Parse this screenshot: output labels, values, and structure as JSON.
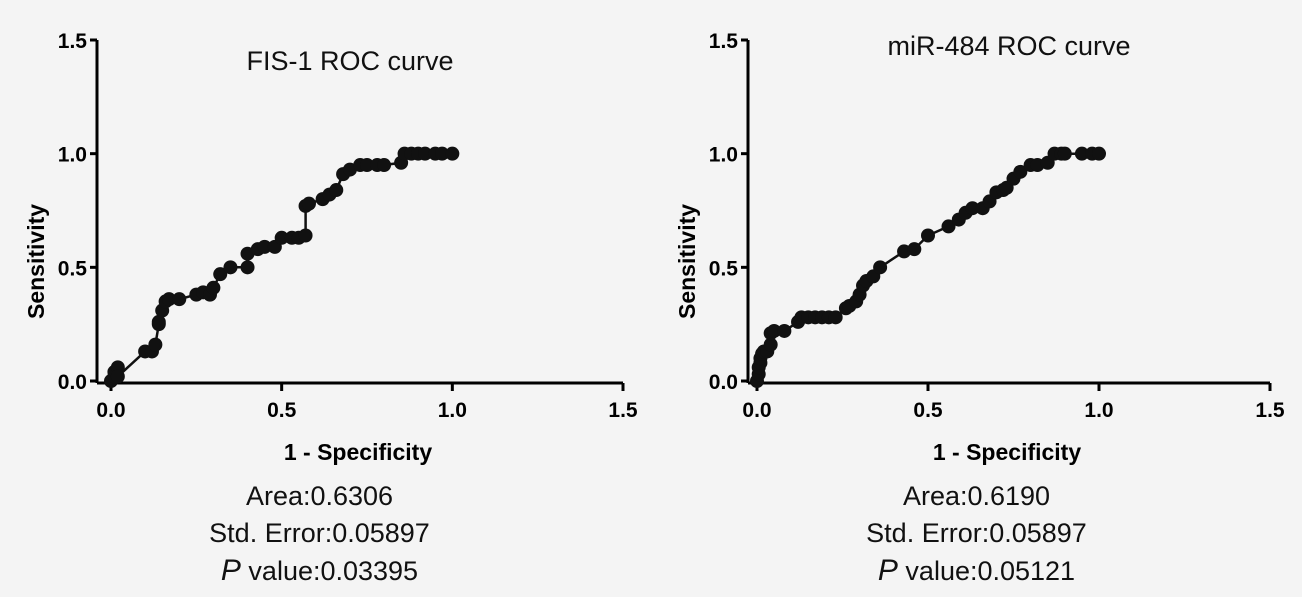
{
  "chart_data": [
    {
      "type": "line",
      "title": "FIS-1 ROC curve",
      "xlabel": "1 - Specificity",
      "ylabel": "Sensitivity",
      "xlim": [
        0,
        1.5
      ],
      "ylim": [
        0,
        1.5
      ],
      "xticks": [
        "0.0",
        "0.5",
        "1.0",
        "1.5"
      ],
      "yticks": [
        "0.0",
        "0.5",
        "1.0",
        "1.5"
      ],
      "grid": false,
      "series": [
        {
          "x": [
            0,
            0.01,
            0.01,
            0.02,
            0.02,
            0.1,
            0.12,
            0.13,
            0.14,
            0.14,
            0.15,
            0.16,
            0.17,
            0.2,
            0.25,
            0.27,
            0.29,
            0.3,
            0.32,
            0.35,
            0.4,
            0.4,
            0.43,
            0.45,
            0.48,
            0.5,
            0.53,
            0.55,
            0.57,
            0.57,
            0.58,
            0.62,
            0.64,
            0.66,
            0.68,
            0.7,
            0.73,
            0.75,
            0.78,
            0.8,
            0.85,
            0.86,
            0.88,
            0.9,
            0.92,
            0.95,
            0.97,
            1.0
          ],
          "y": [
            0,
            0.02,
            0.04,
            0.06,
            0.02,
            0.13,
            0.13,
            0.16,
            0.25,
            0.26,
            0.31,
            0.35,
            0.36,
            0.36,
            0.38,
            0.39,
            0.38,
            0.41,
            0.47,
            0.5,
            0.5,
            0.56,
            0.58,
            0.59,
            0.59,
            0.63,
            0.63,
            0.63,
            0.64,
            0.77,
            0.78,
            0.8,
            0.82,
            0.84,
            0.91,
            0.93,
            0.95,
            0.95,
            0.95,
            0.95,
            0.96,
            1.0,
            1.0,
            1.0,
            1.0,
            1.0,
            1.0,
            1.0
          ]
        }
      ],
      "stats": {
        "area": "Area:0.6306",
        "std_error": "Std. Error:0.05897",
        "p_label": "P",
        "p_value": " value:0.03395"
      }
    },
    {
      "type": "line",
      "title": "miR-484 ROC curve",
      "xlabel": "1 - Specificity",
      "ylabel": "Sensitivity",
      "xlim": [
        0,
        1.5
      ],
      "ylim": [
        0,
        1.5
      ],
      "xticks": [
        "0.0",
        "0.5",
        "1.0",
        "1.5"
      ],
      "yticks": [
        "0.0",
        "0.5",
        "1.0",
        "1.5"
      ],
      "grid": false,
      "series": [
        {
          "x": [
            0,
            0.005,
            0.005,
            0.01,
            0.01,
            0.015,
            0.02,
            0.03,
            0.04,
            0.04,
            0.05,
            0.08,
            0.12,
            0.13,
            0.15,
            0.17,
            0.19,
            0.21,
            0.23,
            0.26,
            0.27,
            0.29,
            0.3,
            0.31,
            0.32,
            0.34,
            0.36,
            0.43,
            0.46,
            0.5,
            0.56,
            0.59,
            0.61,
            0.63,
            0.66,
            0.68,
            0.7,
            0.72,
            0.73,
            0.75,
            0.77,
            0.8,
            0.82,
            0.85,
            0.87,
            0.89,
            0.9,
            0.95,
            0.98,
            1.0
          ],
          "y": [
            0,
            0.03,
            0.06,
            0.08,
            0.1,
            0.12,
            0.13,
            0.13,
            0.16,
            0.21,
            0.22,
            0.22,
            0.26,
            0.28,
            0.28,
            0.28,
            0.28,
            0.28,
            0.28,
            0.32,
            0.33,
            0.35,
            0.38,
            0.42,
            0.44,
            0.46,
            0.5,
            0.57,
            0.58,
            0.64,
            0.68,
            0.71,
            0.74,
            0.76,
            0.76,
            0.79,
            0.83,
            0.84,
            0.85,
            0.89,
            0.92,
            0.95,
            0.95,
            0.96,
            1.0,
            1.0,
            1.0,
            1.0,
            1.0,
            1.0
          ]
        }
      ],
      "stats": {
        "area": "Area:0.6190",
        "std_error": "Std. Error:0.05897",
        "p_label": "P",
        "p_value": " value:0.05121"
      }
    }
  ],
  "colors": {
    "line": "#111111",
    "marker": "#111111",
    "axis": "#000000",
    "background": "#f4f4f4"
  }
}
